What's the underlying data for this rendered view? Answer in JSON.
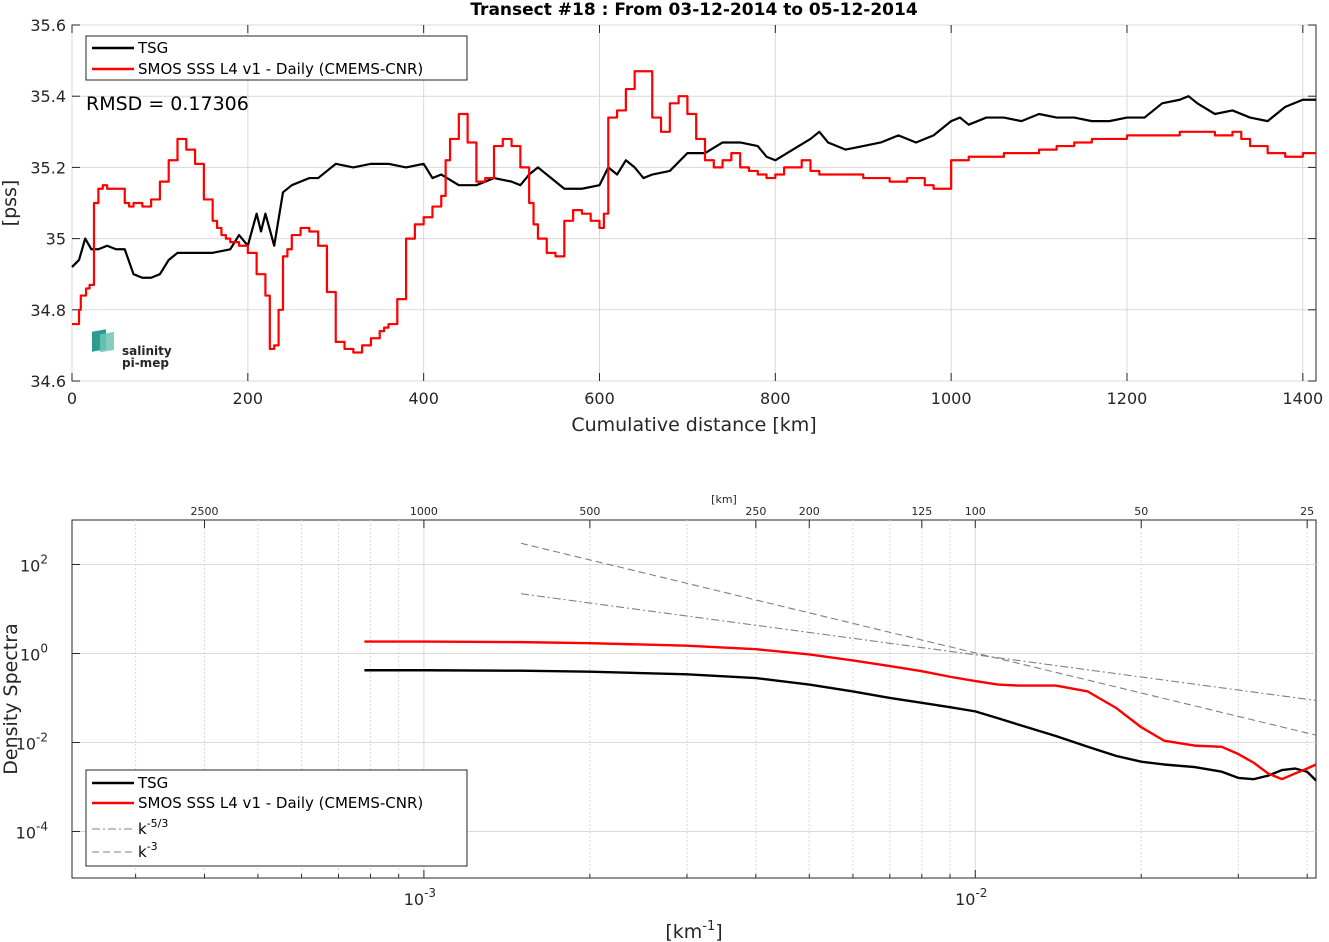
{
  "chart_data": [
    {
      "type": "line",
      "title": "Transect #18 : From 03-12-2014 to 05-12-2014",
      "xlabel": "Cumulative distance [km]",
      "ylabel": "[pss]",
      "xlim": [
        0,
        1415
      ],
      "ylim": [
        34.6,
        35.6
      ],
      "xticks": [
        0,
        200,
        400,
        600,
        800,
        1000,
        1200,
        1400
      ],
      "xtick_labels": [
        "0",
        "200",
        "400",
        "600",
        "800",
        "1000",
        "1200",
        "1400"
      ],
      "yticks": [
        34.6,
        34.8,
        35,
        35.2,
        35.4,
        35.6
      ],
      "ytick_labels": [
        "34.6",
        "34.8",
        "35",
        "35.2",
        "35.4",
        "35.6"
      ],
      "grid": true,
      "legend_position": "top-left",
      "annotation": "RMSD = 0.17306",
      "logo": {
        "line1": "salinity",
        "line2": "pi-mep",
        "color": "#2a9d8f"
      },
      "series": [
        {
          "name": "TSG",
          "color": "#000000",
          "x": [
            0,
            8,
            15,
            22,
            30,
            40,
            50,
            60,
            70,
            80,
            90,
            100,
            110,
            120,
            140,
            160,
            180,
            190,
            200,
            210,
            215,
            220,
            230,
            240,
            250,
            260,
            270,
            280,
            300,
            320,
            340,
            360,
            380,
            400,
            410,
            420,
            440,
            460,
            480,
            500,
            510,
            520,
            530,
            540,
            560,
            580,
            600,
            610,
            620,
            630,
            640,
            650,
            660,
            680,
            700,
            720,
            740,
            760,
            780,
            790,
            800,
            820,
            840,
            850,
            860,
            880,
            900,
            920,
            940,
            960,
            980,
            1000,
            1010,
            1020,
            1040,
            1060,
            1080,
            1100,
            1120,
            1140,
            1160,
            1180,
            1200,
            1220,
            1240,
            1260,
            1270,
            1280,
            1300,
            1320,
            1340,
            1360,
            1380,
            1400,
            1415
          ],
          "values": [
            34.92,
            34.94,
            35.0,
            34.97,
            34.97,
            34.98,
            34.97,
            34.97,
            34.9,
            34.89,
            34.89,
            34.9,
            34.94,
            34.96,
            34.96,
            34.96,
            34.97,
            35.01,
            34.98,
            35.07,
            35.02,
            35.07,
            34.98,
            35.13,
            35.15,
            35.16,
            35.17,
            35.17,
            35.21,
            35.2,
            35.21,
            35.21,
            35.2,
            35.21,
            35.17,
            35.18,
            35.15,
            35.15,
            35.17,
            35.16,
            35.15,
            35.18,
            35.2,
            35.18,
            35.14,
            35.14,
            35.15,
            35.2,
            35.18,
            35.22,
            35.2,
            35.17,
            35.18,
            35.19,
            35.24,
            35.24,
            35.27,
            35.27,
            35.26,
            35.23,
            35.22,
            35.25,
            35.28,
            35.3,
            35.27,
            35.25,
            35.26,
            35.27,
            35.29,
            35.27,
            35.29,
            35.33,
            35.34,
            35.32,
            35.34,
            35.34,
            35.33,
            35.35,
            35.34,
            35.34,
            35.33,
            35.33,
            35.34,
            35.34,
            35.38,
            35.39,
            35.4,
            35.38,
            35.35,
            35.36,
            35.34,
            35.33,
            35.37,
            35.39,
            35.39
          ]
        },
        {
          "name": "SMOS SSS L4 v1 - Daily (CMEMS-CNR)",
          "color": "#ff0000",
          "x": [
            0,
            8,
            10,
            16,
            20,
            25,
            30,
            35,
            40,
            60,
            65,
            70,
            80,
            90,
            100,
            110,
            120,
            130,
            140,
            150,
            160,
            165,
            170,
            175,
            180,
            190,
            200,
            210,
            220,
            225,
            230,
            235,
            240,
            245,
            250,
            260,
            270,
            280,
            290,
            300,
            310,
            320,
            330,
            340,
            350,
            355,
            360,
            370,
            380,
            390,
            400,
            410,
            420,
            425,
            430,
            440,
            450,
            460,
            470,
            480,
            490,
            500,
            510,
            520,
            525,
            530,
            540,
            550,
            560,
            570,
            580,
            590,
            600,
            605,
            610,
            620,
            630,
            640,
            650,
            660,
            670,
            680,
            690,
            700,
            710,
            720,
            730,
            740,
            750,
            760,
            770,
            780,
            790,
            800,
            810,
            820,
            830,
            840,
            850,
            870,
            900,
            930,
            950,
            970,
            980,
            1000,
            1020,
            1040,
            1060,
            1080,
            1100,
            1120,
            1140,
            1160,
            1180,
            1200,
            1220,
            1240,
            1260,
            1280,
            1300,
            1320,
            1330,
            1340,
            1360,
            1380,
            1400,
            1415
          ],
          "values": [
            34.76,
            34.8,
            34.84,
            34.86,
            34.87,
            35.1,
            35.14,
            35.15,
            35.14,
            35.1,
            35.09,
            35.1,
            35.09,
            35.11,
            35.16,
            35.22,
            35.28,
            35.25,
            35.21,
            35.11,
            35.05,
            35.03,
            35.01,
            35.0,
            34.99,
            34.98,
            34.96,
            34.9,
            34.84,
            34.69,
            34.7,
            34.8,
            34.95,
            34.97,
            35.01,
            35.03,
            35.02,
            34.98,
            34.85,
            34.71,
            34.69,
            34.68,
            34.7,
            34.72,
            34.74,
            34.75,
            34.76,
            34.83,
            35.0,
            35.04,
            35.06,
            35.09,
            35.12,
            35.22,
            35.28,
            35.35,
            35.27,
            35.16,
            35.17,
            35.26,
            35.28,
            35.26,
            35.2,
            35.1,
            35.04,
            35.0,
            34.96,
            34.95,
            35.05,
            35.08,
            35.07,
            35.05,
            35.03,
            35.07,
            35.34,
            35.36,
            35.42,
            35.47,
            35.47,
            35.34,
            35.3,
            35.38,
            35.4,
            35.35,
            35.28,
            35.22,
            35.2,
            35.22,
            35.24,
            35.2,
            35.19,
            35.18,
            35.17,
            35.18,
            35.2,
            35.2,
            35.22,
            35.19,
            35.18,
            35.18,
            35.17,
            35.16,
            35.17,
            35.15,
            35.14,
            35.22,
            35.23,
            35.23,
            35.24,
            35.24,
            35.25,
            35.26,
            35.27,
            35.28,
            35.28,
            35.29,
            35.29,
            35.29,
            35.3,
            35.3,
            35.29,
            35.3,
            35.28,
            35.26,
            35.24,
            35.23,
            35.24,
            35.24
          ]
        }
      ]
    },
    {
      "type": "line",
      "title": "",
      "xlabel": "[km",
      "xlabel_sup": "-1",
      "xlabel_tail": "]",
      "ylabel": "Density Spectra",
      "top_axis_label": "[km]",
      "x_scale": "log",
      "y_scale": "log",
      "xlim": [
        0.00023,
        0.0415
      ],
      "ylim": [
        9e-06,
        1000
      ],
      "xticks": [
        0.001,
        0.01
      ],
      "xtick_base": "10",
      "xtick_exps": [
        "-3",
        "-2"
      ],
      "yticks": [
        0.0001,
        0.01,
        1,
        100
      ],
      "ytick_base": "10",
      "ytick_exps": [
        "-4",
        "-2",
        "0",
        "2"
      ],
      "top_ticks_km": [
        2500,
        1000,
        500,
        250,
        200,
        125,
        100,
        50,
        25
      ],
      "top_tick_labels": [
        "2500",
        "1000",
        "500",
        "250",
        "200",
        "125",
        "100",
        "50",
        "25"
      ],
      "grid": true,
      "legend_position": "bottom-left",
      "series": [
        {
          "name": "TSG",
          "color": "#000000",
          "style": "solid",
          "x": [
            0.00078,
            0.001,
            0.0015,
            0.002,
            0.003,
            0.004,
            0.005,
            0.006,
            0.007,
            0.008,
            0.009,
            0.01,
            0.011,
            0.012,
            0.014,
            0.016,
            0.018,
            0.02,
            0.022,
            0.025,
            0.028,
            0.03,
            0.032,
            0.034,
            0.036,
            0.038,
            0.04,
            0.0415
          ],
          "values": [
            0.42,
            0.42,
            0.41,
            0.39,
            0.34,
            0.28,
            0.2,
            0.14,
            0.1,
            0.078,
            0.062,
            0.05,
            0.035,
            0.025,
            0.014,
            0.008,
            0.005,
            0.0037,
            0.0032,
            0.0028,
            0.0022,
            0.0016,
            0.0015,
            0.0018,
            0.0024,
            0.0026,
            0.0022,
            0.0014
          ]
        },
        {
          "name": "SMOS SSS L4 v1 - Daily (CMEMS-CNR)",
          "color": "#ff0000",
          "style": "solid",
          "x": [
            0.00078,
            0.001,
            0.0015,
            0.002,
            0.003,
            0.004,
            0.005,
            0.006,
            0.007,
            0.008,
            0.009,
            0.01,
            0.011,
            0.012,
            0.014,
            0.016,
            0.018,
            0.02,
            0.022,
            0.025,
            0.028,
            0.03,
            0.032,
            0.034,
            0.036,
            0.038,
            0.04,
            0.0415
          ],
          "values": [
            1.85,
            1.85,
            1.8,
            1.7,
            1.5,
            1.25,
            0.95,
            0.7,
            0.52,
            0.4,
            0.3,
            0.24,
            0.2,
            0.19,
            0.19,
            0.14,
            0.06,
            0.022,
            0.011,
            0.0085,
            0.008,
            0.0055,
            0.0035,
            0.002,
            0.0015,
            0.002,
            0.0026,
            0.0032
          ]
        },
        {
          "name": "k",
          "name_sup": "-5/3",
          "color": "#808080",
          "style": "dashdot",
          "x": [
            0.0015,
            0.0415
          ],
          "values": [
            22.0,
            0.088
          ]
        },
        {
          "name": "k",
          "name_sup": "-3",
          "color": "#808080",
          "style": "dashed",
          "x": [
            0.0015,
            0.0415
          ],
          "values": [
            300.0,
            0.0146
          ]
        }
      ]
    }
  ]
}
